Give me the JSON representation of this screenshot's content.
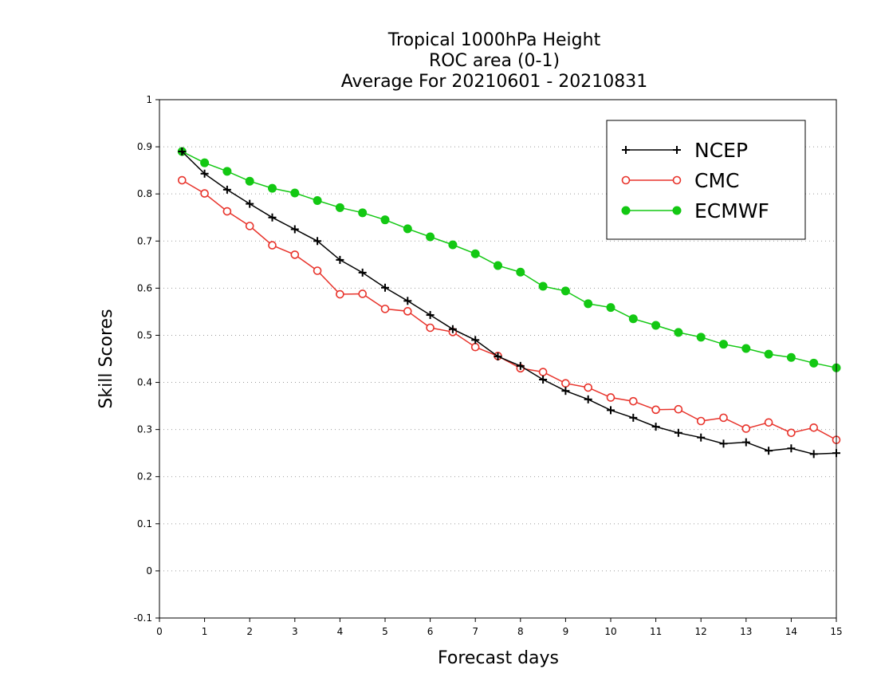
{
  "chart_data": {
    "type": "line",
    "title_lines": [
      "Tropical 1000hPa Height",
      "ROC area (0-1)",
      "Average For 20210601 - 20210831"
    ],
    "xlabel": "Forecast days",
    "ylabel": "Skill Scores",
    "xlim": [
      0,
      15
    ],
    "ylim": [
      -0.1,
      1
    ],
    "x_ticks": [
      0,
      1,
      2,
      3,
      4,
      5,
      6,
      7,
      8,
      9,
      10,
      11,
      12,
      13,
      14,
      15
    ],
    "y_ticks": [
      -0.1,
      0,
      0.1,
      0.2,
      0.3,
      0.4,
      0.5,
      0.6,
      0.7,
      0.8,
      0.9,
      1
    ],
    "y_tick_labels": [
      "-0.1",
      "0",
      "0.1",
      "0.2",
      "0.3",
      "0.4",
      "0.5",
      "0.6",
      "0.7",
      "0.8",
      "0.9",
      "1"
    ],
    "grid": "horizontal dotted",
    "legend_position": "top-right",
    "x": [
      0.5,
      1,
      1.5,
      2,
      2.5,
      3,
      3.5,
      4,
      4.5,
      5,
      5.5,
      6,
      6.5,
      7,
      7.5,
      8,
      8.5,
      9,
      9.5,
      10,
      10.5,
      11,
      11.5,
      12,
      12.5,
      13,
      13.5,
      14,
      14.5,
      15
    ],
    "series": [
      {
        "name": "NCEP",
        "color": "#000000",
        "marker": "plus",
        "values": [
          0.89,
          0.843,
          0.809,
          0.779,
          0.75,
          0.725,
          0.7,
          0.66,
          0.633,
          0.601,
          0.573,
          0.543,
          0.513,
          0.49,
          0.455,
          0.435,
          0.406,
          0.382,
          0.364,
          0.341,
          0.325,
          0.306,
          0.293,
          0.283,
          0.27,
          0.273,
          0.255,
          0.26,
          0.248,
          0.25
        ]
      },
      {
        "name": "CMC",
        "color": "#e8332b",
        "marker": "open-circle",
        "values": [
          0.829,
          0.801,
          0.763,
          0.732,
          0.691,
          0.671,
          0.637,
          0.587,
          0.588,
          0.556,
          0.551,
          0.516,
          0.507,
          0.475,
          0.456,
          0.43,
          0.422,
          0.398,
          0.389,
          0.368,
          0.36,
          0.342,
          0.343,
          0.318,
          0.325,
          0.302,
          0.315,
          0.293,
          0.304,
          0.278
        ]
      },
      {
        "name": "ECMWF",
        "color": "#13c813",
        "marker": "filled-circle",
        "values": [
          0.89,
          0.866,
          0.848,
          0.827,
          0.812,
          0.802,
          0.786,
          0.771,
          0.76,
          0.745,
          0.726,
          0.709,
          0.692,
          0.673,
          0.648,
          0.634,
          0.604,
          0.594,
          0.567,
          0.559,
          0.535,
          0.521,
          0.506,
          0.496,
          0.481,
          0.472,
          0.46,
          0.453,
          0.441,
          0.431
        ]
      }
    ]
  }
}
